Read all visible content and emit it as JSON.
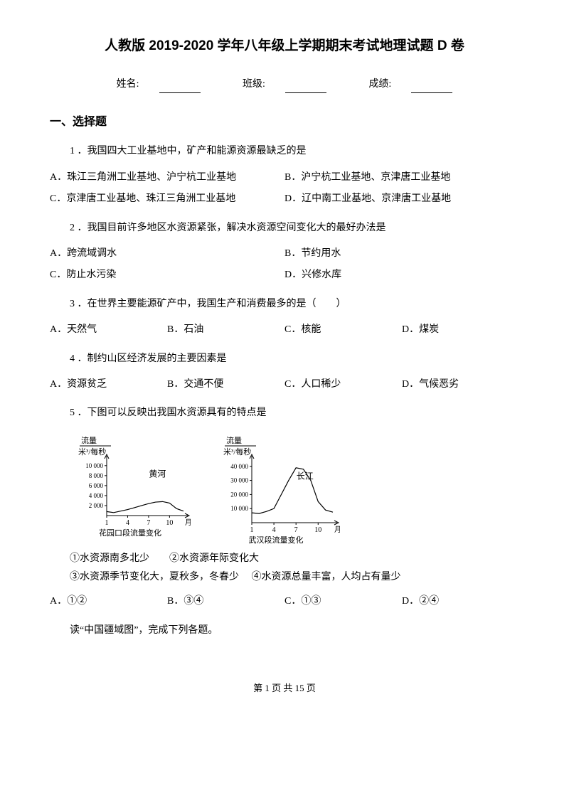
{
  "title": "人教版 2019-2020 学年八年级上学期期末考试地理试题 D 卷",
  "info": {
    "name_label": "姓名:",
    "class_label": "班级:",
    "score_label": "成绩:"
  },
  "section_heading": "一、选择题",
  "q1": {
    "stem": "1 ．我国四大工业基地中，矿产和能源资源最缺乏的是",
    "A": "A．珠江三角洲工业基地、沪宁杭工业基地",
    "B": "B．沪宁杭工业基地、京津唐工业基地",
    "C": "C．京津唐工业基地、珠江三角洲工业基地",
    "D": "D．辽中南工业基地、京津唐工业基地"
  },
  "q2": {
    "stem": "2 ．我国目前许多地区水资源紧张，解决水资源空间变化大的最好办法是",
    "A": "A．跨流域调水",
    "B": "B．节约用水",
    "C": "C．防止水污染",
    "D": "D．兴修水库"
  },
  "q3": {
    "stem": "3 ．在世界主要能源矿产中，我国生产和消费最多的是（　　）",
    "A": "A．天然气",
    "B": "B．石油",
    "C": "C．核能",
    "D": "D．煤炭"
  },
  "q4": {
    "stem": "4 ．制约山区经济发展的主要因素是",
    "A": "A．资源贫乏",
    "B": "B．交通不便",
    "C": "C．人口稀少",
    "D": "D．气候恶劣"
  },
  "q5": {
    "stem": "5 ．下图可以反映出我国水资源具有的特点是",
    "chart1": {
      "type": "line",
      "title_axis_y": "流量",
      "unit": "米³/每秒",
      "label": "黄河",
      "caption": "花园口段流量变化",
      "xlabel": "月份",
      "xticks": [
        "1",
        "4",
        "7",
        "10"
      ],
      "yticks": [
        "2 000",
        "4 000",
        "6 000",
        "8 000",
        "10 000"
      ],
      "ymax": 10000,
      "values": [
        800,
        600,
        900,
        1200,
        1600,
        2000,
        2400,
        2700,
        2800,
        2500,
        1400,
        900
      ],
      "line_color": "#000000",
      "line_width": 1.2,
      "bg": "#ffffff"
    },
    "chart2": {
      "type": "line",
      "title_axis_y": "流量",
      "unit": "米³/每秒",
      "label": "长江",
      "caption": "武汉段流量变化",
      "xlabel": "月份",
      "xticks": [
        "1",
        "4",
        "7",
        "10"
      ],
      "yticks": [
        "10 000",
        "20 000",
        "30 000",
        "40 000"
      ],
      "ymax": 40000,
      "values": [
        7000,
        6500,
        8000,
        10000,
        20000,
        30000,
        39000,
        38000,
        30000,
        15000,
        9000,
        7500
      ],
      "line_color": "#000000",
      "line_width": 1.2,
      "bg": "#ffffff"
    },
    "statements": {
      "s1": "①水资源南多北少",
      "s2": "②水资源年际变化大",
      "s3": "③水资源季节变化大，夏秋多，冬春少",
      "s4": "④水资源总量丰富，人均占有量少"
    },
    "A": "A．①②",
    "B": "B．③④",
    "C": "C．①③",
    "D": "D．②④"
  },
  "tail_text": "读“中国疆域图”，完成下列各题。",
  "footer": "第 1 页 共 15 页"
}
